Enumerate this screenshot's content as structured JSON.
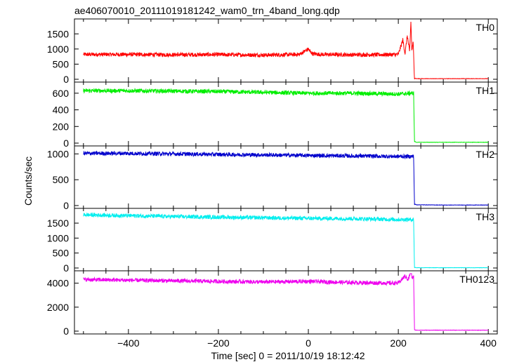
{
  "title": "ae406070010_20111019181242_wam0_trn_4band_long.qdp",
  "ylabel": "Counts/sec",
  "xlabel": "Time [sec] 0 = 2011/10/19 18:12:42",
  "chart_data": {
    "type": "line",
    "title": "ae406070010_20111019181242_wam0_trn_4band_long.qdp",
    "xlabel": "Time [sec] 0 = 2011/10/19 18:12:42",
    "ylabel": "Counts/sec",
    "xlim": [
      -520,
      420
    ],
    "x_ticks": [
      -400,
      -200,
      0,
      200,
      400
    ],
    "grid": false,
    "panels": [
      {
        "name": "TH0",
        "color": "#ff0000",
        "ylim": [
          0,
          1900
        ],
        "y_ticks": [
          0,
          500,
          1000,
          1500
        ],
        "x": [
          -500,
          -400,
          -300,
          -200,
          -100,
          -20,
          0,
          5,
          10,
          30,
          100,
          150,
          200,
          210,
          215,
          220,
          225,
          228,
          230,
          233,
          236,
          240,
          300,
          400
        ],
        "y": [
          820,
          820,
          810,
          815,
          800,
          820,
          1000,
          900,
          840,
          820,
          810,
          810,
          820,
          1300,
          850,
          1450,
          900,
          1900,
          950,
          1200,
          40,
          20,
          20,
          20
        ]
      },
      {
        "name": "TH1",
        "color": "#00ee00",
        "ylim": [
          0,
          700
        ],
        "y_ticks": [
          0,
          200,
          400,
          600
        ],
        "x": [
          -500,
          -400,
          -300,
          -200,
          -100,
          0,
          100,
          150,
          200,
          230,
          234,
          236,
          240,
          300,
          400
        ],
        "y": [
          630,
          630,
          625,
          620,
          610,
          600,
          600,
          595,
          590,
          600,
          600,
          20,
          10,
          10,
          10
        ]
      },
      {
        "name": "TH2",
        "color": "#0000cc",
        "ylim": [
          0,
          1100
        ],
        "y_ticks": [
          0,
          500,
          1000
        ],
        "x": [
          -500,
          -400,
          -300,
          -200,
          -100,
          0,
          100,
          200,
          234,
          236,
          240,
          300,
          400
        ],
        "y": [
          1010,
          1010,
          1000,
          990,
          980,
          970,
          960,
          950,
          950,
          30,
          15,
          10,
          10
        ],
        "final_value_drop": true
      },
      {
        "name": "TH3",
        "color": "#00eeee",
        "ylim": [
          0,
          1900
        ],
        "y_ticks": [
          0,
          500,
          1000,
          1500
        ],
        "x": [
          -500,
          -400,
          -300,
          -200,
          -100,
          0,
          100,
          200,
          234,
          236,
          240,
          300,
          400
        ],
        "y": [
          1780,
          1750,
          1720,
          1700,
          1680,
          1660,
          1650,
          1620,
          1620,
          20,
          10,
          10,
          10
        ]
      },
      {
        "name": "TH0123",
        "color": "#ee00ee",
        "ylim": [
          0,
          4800
        ],
        "y_ticks": [
          0,
          2000,
          4000
        ],
        "x": [
          -500,
          -400,
          -300,
          -200,
          -100,
          0,
          100,
          200,
          215,
          222,
          228,
          231,
          234,
          236,
          240,
          300,
          400
        ],
        "y": [
          4300,
          4250,
          4200,
          4150,
          4100,
          4150,
          4050,
          4000,
          4600,
          4300,
          5000,
          4400,
          4600,
          100,
          80,
          80,
          80
        ]
      }
    ]
  }
}
